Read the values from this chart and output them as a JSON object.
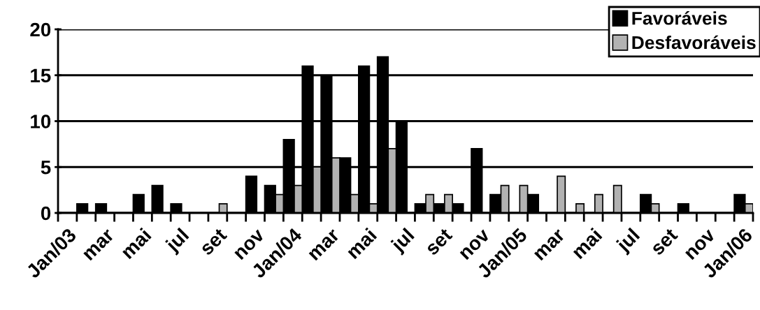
{
  "chart_data": {
    "type": "bar",
    "categories": [
      "Jan/03",
      null,
      "mar",
      null,
      "mai",
      null,
      "jul",
      null,
      "set",
      null,
      "nov",
      null,
      "Jan/04",
      null,
      "mar",
      null,
      "mai",
      null,
      "jul",
      null,
      "set",
      null,
      "nov",
      null,
      "Jan/05",
      null,
      "mar",
      null,
      "mai",
      null,
      "jul",
      null,
      "set",
      null,
      "nov",
      null,
      "Jan/06"
    ],
    "series": [
      {
        "name": "Favoráveis",
        "color": "#000000",
        "values": [
          0,
          1,
          1,
          0,
          2,
          3,
          1,
          0,
          0,
          0,
          4,
          3,
          8,
          16,
          15,
          6,
          16,
          17,
          10,
          1,
          1,
          1,
          7,
          2,
          0,
          2,
          0,
          0,
          0,
          0,
          0,
          2,
          0,
          1,
          0,
          0,
          2
        ]
      },
      {
        "name": "Desfavoráveis",
        "color": "#b2b2b2",
        "values": [
          0,
          0,
          0,
          0,
          0,
          0,
          0,
          0,
          1,
          0,
          0,
          2,
          3,
          5,
          6,
          2,
          1,
          7,
          0,
          2,
          2,
          0,
          0,
          3,
          3,
          0,
          4,
          1,
          2,
          3,
          0,
          1,
          0,
          0,
          0,
          0,
          1
        ]
      }
    ],
    "ylim": [
      0,
      20
    ],
    "yticks": [
      0,
      5,
      10,
      15,
      20
    ],
    "grid": "y",
    "legend": "top right"
  }
}
